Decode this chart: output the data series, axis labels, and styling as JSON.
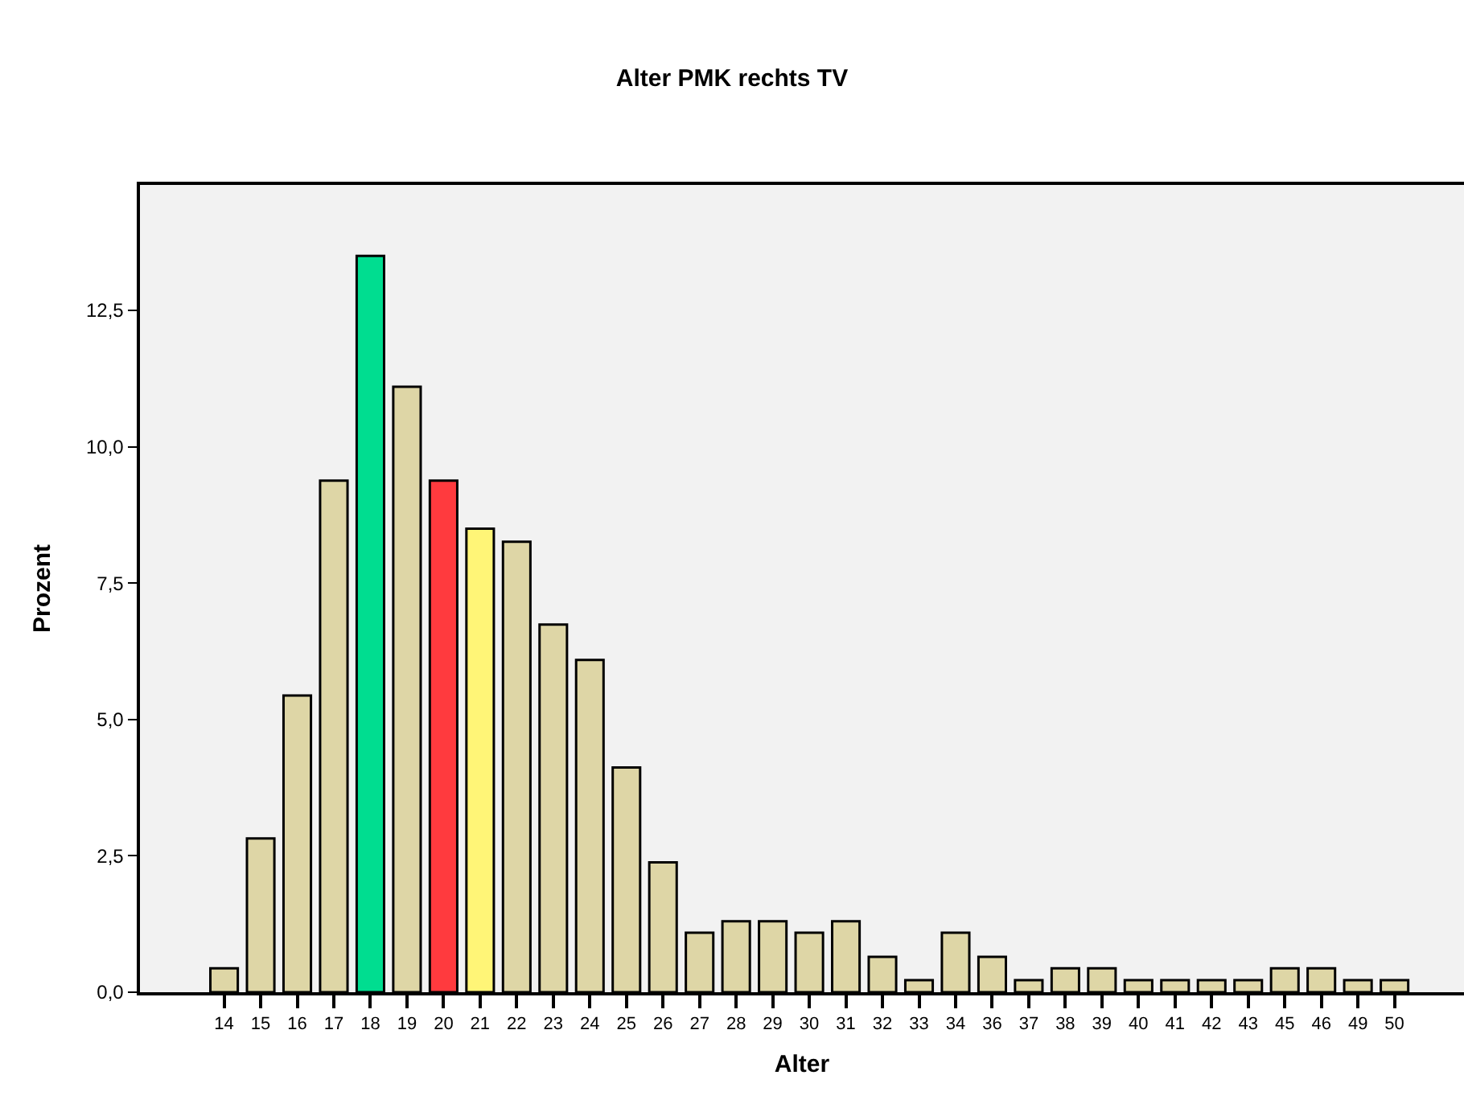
{
  "chart_data": {
    "type": "bar",
    "title": "Alter PMK rechts TV",
    "xlabel": "Alter",
    "ylabel": "Prozent",
    "categories": [
      "14",
      "15",
      "16",
      "17",
      "18",
      "19",
      "20",
      "21",
      "22",
      "23",
      "24",
      "25",
      "26",
      "27",
      "28",
      "29",
      "30",
      "31",
      "32",
      "33",
      "34",
      "36",
      "37",
      "38",
      "39",
      "40",
      "41",
      "42",
      "43",
      "45",
      "46",
      "49",
      "50"
    ],
    "values": [
      0.44,
      2.82,
      5.44,
      9.38,
      13.5,
      11.1,
      9.38,
      8.5,
      8.26,
      6.74,
      6.09,
      4.12,
      2.38,
      1.09,
      1.3,
      1.3,
      1.09,
      1.3,
      0.65,
      0.22,
      1.09,
      0.65,
      0.22,
      0.44,
      0.44,
      0.22,
      0.22,
      0.22,
      0.22,
      0.44,
      0.44,
      0.22,
      0.22
    ],
    "colors": [
      "#ded6a6",
      "#ded6a6",
      "#ded6a6",
      "#ded6a6",
      "#00dd90",
      "#ded6a6",
      "#ff3a3e",
      "#fff577",
      "#ded6a6",
      "#ded6a6",
      "#ded6a6",
      "#ded6a6",
      "#ded6a6",
      "#ded6a6",
      "#ded6a6",
      "#ded6a6",
      "#ded6a6",
      "#ded6a6",
      "#ded6a6",
      "#ded6a6",
      "#ded6a6",
      "#ded6a6",
      "#ded6a6",
      "#ded6a6",
      "#ded6a6",
      "#ded6a6",
      "#ded6a6",
      "#ded6a6",
      "#ded6a6",
      "#ded6a6",
      "#ded6a6",
      "#ded6a6",
      "#ded6a6"
    ],
    "ylim": [
      0,
      14.8
    ],
    "yticks": [
      {
        "value": 0,
        "label": "0,0"
      },
      {
        "value": 2.5,
        "label": "2,5"
      },
      {
        "value": 5,
        "label": "5,0"
      },
      {
        "value": 7.5,
        "label": "7,5"
      },
      {
        "value": 10,
        "label": "10,0"
      },
      {
        "value": 12.5,
        "label": "12,5"
      }
    ],
    "tick_labels": true
  }
}
